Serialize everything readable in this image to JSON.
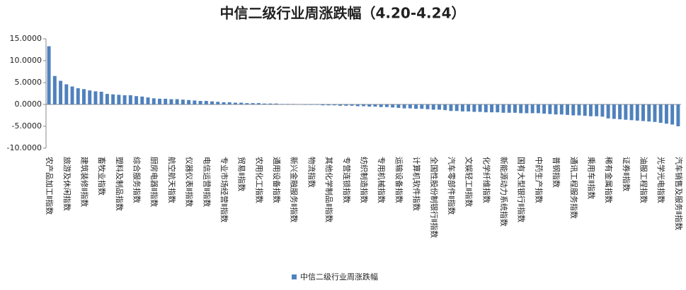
{
  "chart_data": {
    "type": "bar",
    "title": "中信二级行业周涨跌幅（4.20-4.24）",
    "categories": [
      "农产品加工Ⅱ指数",
      null,
      null,
      "旅游及休闲指数",
      null,
      null,
      "建筑装修Ⅱ指数",
      null,
      null,
      "畜牧业指数",
      null,
      null,
      "塑料及制品指数",
      null,
      null,
      "综合服务指数",
      null,
      null,
      "厨房电器Ⅱ指数",
      null,
      null,
      "航空航天指数",
      null,
      null,
      "仪器仪表Ⅱ指数",
      null,
      null,
      "电信运营Ⅱ指数",
      null,
      null,
      "专业市场经营Ⅱ指数",
      null,
      null,
      "贸易Ⅱ指数",
      null,
      null,
      "农用化工指数",
      null,
      null,
      "通用设备指数",
      null,
      null,
      "新兴金融服务Ⅱ指数",
      null,
      null,
      "物流指数",
      null,
      null,
      "其他化学制品Ⅱ指数",
      null,
      null,
      "专营连锁指数",
      null,
      null,
      "纺织制造指数",
      null,
      null,
      "专用机械指数",
      null,
      null,
      "运输设备指数",
      null,
      null,
      "计算机软件指数",
      null,
      null,
      "全国性股份制银行Ⅱ指数",
      null,
      null,
      "汽车零部件Ⅱ指数",
      null,
      null,
      "文娱轻工Ⅱ指数",
      null,
      null,
      "化学纤维指数",
      null,
      null,
      "新能源动力系统指数",
      null,
      null,
      "国有大型银行Ⅱ指数",
      null,
      null,
      "中药生产指数",
      null,
      null,
      "普钢指数",
      null,
      null,
      "通讯工程服务指数",
      null,
      null,
      "乘用车Ⅱ指数",
      null,
      null,
      "稀有金属指数",
      null,
      null,
      "证券Ⅱ指数",
      null,
      null,
      "油服工程指数",
      null,
      null,
      "光学光电指数",
      null,
      null,
      "汽车销售及服务Ⅱ指数"
    ],
    "series": [
      {
        "name": "中信二级行业周涨跌幅",
        "color": "#4f81bd",
        "values": [
          13.3,
          6.5,
          5.4,
          4.6,
          4.1,
          3.7,
          3.5,
          3.2,
          3.0,
          2.9,
          2.4,
          2.3,
          2.2,
          2.1,
          2.1,
          1.9,
          1.8,
          1.6,
          1.4,
          1.3,
          1.3,
          1.2,
          1.2,
          1.1,
          1.0,
          0.9,
          0.8,
          0.8,
          0.7,
          0.6,
          0.5,
          0.5,
          0.4,
          0.4,
          0.3,
          0.3,
          0.3,
          0.2,
          0.2,
          0.2,
          0.1,
          0.1,
          0.1,
          0.0,
          -0.1,
          -0.1,
          -0.1,
          -0.2,
          -0.2,
          -0.2,
          -0.3,
          -0.3,
          -0.3,
          -0.4,
          -0.4,
          -0.5,
          -0.5,
          -0.6,
          -0.6,
          -0.7,
          -0.8,
          -0.9,
          -0.9,
          -1.0,
          -1.0,
          -1.1,
          -1.2,
          -1.2,
          -1.3,
          -1.5,
          -1.5,
          -1.6,
          -1.6,
          -1.7,
          -1.7,
          -1.8,
          -1.8,
          -1.8,
          -1.9,
          -1.9,
          -1.9,
          -2.0,
          -2.0,
          -2.0,
          -2.0,
          -2.1,
          -2.2,
          -2.3,
          -2.3,
          -2.4,
          -2.5,
          -2.5,
          -2.6,
          -2.7,
          -2.7,
          -2.8,
          -3.2,
          -3.3,
          -3.4,
          -3.5,
          -3.6,
          -3.7,
          -3.8,
          -3.9,
          -4.0,
          -4.2,
          -4.4,
          -4.6,
          -5.0
        ]
      }
    ],
    "ylim": [
      -10,
      15
    ],
    "yticks": [
      {
        "value": -10,
        "label": "-10.0000"
      },
      {
        "value": -5,
        "label": "-5.0000"
      },
      {
        "value": 0,
        "label": "0.0000"
      },
      {
        "value": 5,
        "label": "5.0000"
      },
      {
        "value": 10,
        "label": "10.0000"
      },
      {
        "value": 15,
        "label": "15.0000"
      }
    ],
    "legend": "bottom"
  }
}
